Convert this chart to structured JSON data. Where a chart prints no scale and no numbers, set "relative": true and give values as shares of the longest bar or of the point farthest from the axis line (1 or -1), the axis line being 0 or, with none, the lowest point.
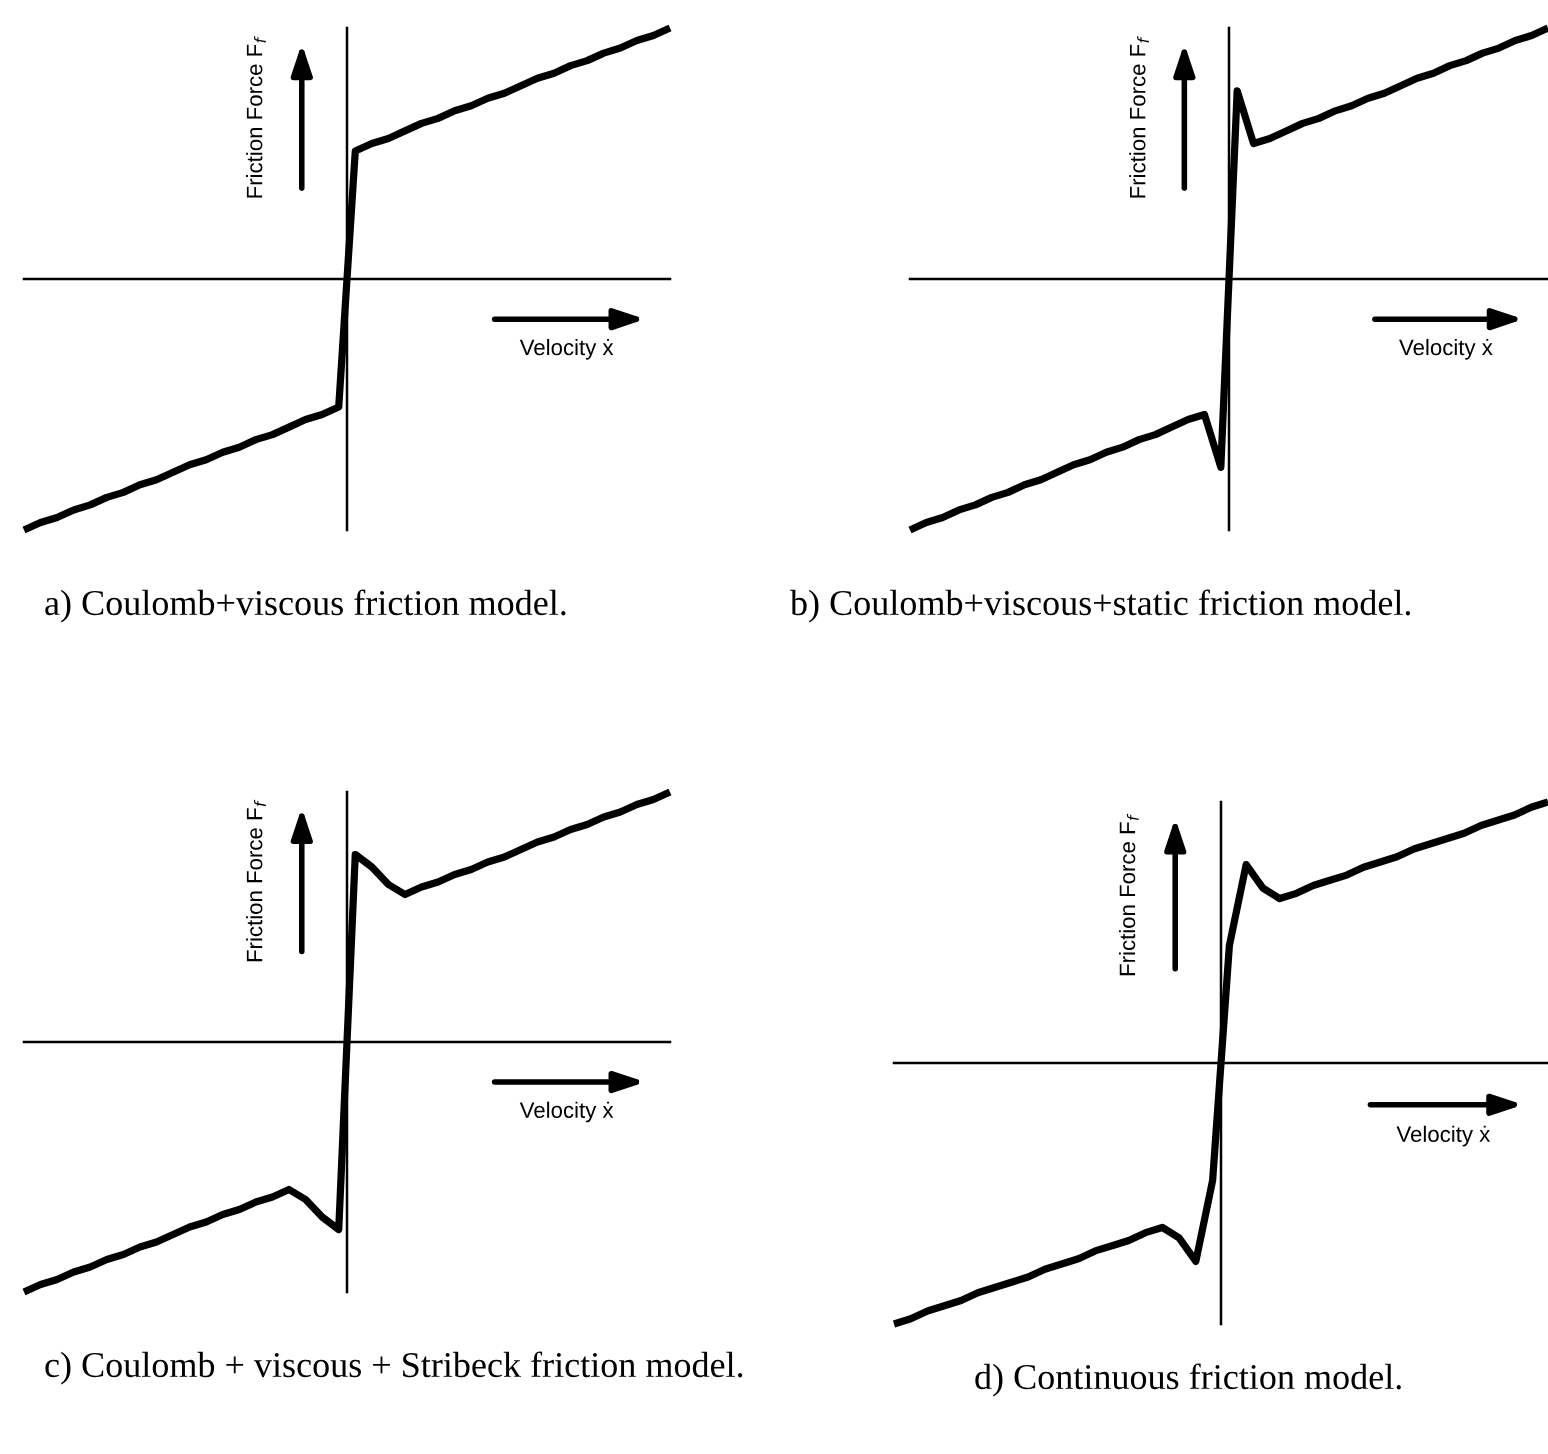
{
  "chart_data": [
    {
      "type": "line",
      "relative": true,
      "title": "a) Coulomb+viscous friction model.",
      "xlabel": "Velocity ẋ",
      "ylabel": "Friction Force F$_{f}$",
      "line_style": "solid",
      "categories": [
        null,
        null,
        null,
        null,
        null,
        null,
        null,
        null,
        null,
        null,
        null,
        null,
        null,
        null,
        null,
        null,
        null,
        null,
        null,
        null,
        null,
        null,
        null,
        null,
        null,
        null,
        null,
        null,
        null,
        null,
        null,
        null,
        null,
        null,
        null,
        null,
        null,
        null,
        null,
        null
      ],
      "series": [
        {
          "color": "#000000",
          "values": [
            -1,
            -0.97,
            -0.95,
            -0.92,
            -0.9,
            -0.87,
            -0.85,
            -0.82,
            -0.8,
            -0.77,
            -0.74,
            -0.72,
            -0.69,
            -0.67,
            -0.64,
            -0.62,
            -0.59,
            -0.56,
            -0.54,
            -0.51,
            0.51,
            0.54,
            0.56,
            0.59,
            0.62,
            0.64,
            0.67,
            0.69,
            0.72,
            0.74,
            0.77,
            0.8,
            0.82,
            0.85,
            0.87,
            0.9,
            0.92,
            0.95,
            0.97,
            1
          ]
        }
      ]
    },
    {
      "type": "line",
      "relative": true,
      "title": "b) Coulomb+viscous+static friction model.",
      "xlabel": "Velocity ẋ",
      "ylabel": "Friction Force F$_{f}$",
      "line_style": "solid",
      "categories": [
        null,
        null,
        null,
        null,
        null,
        null,
        null,
        null,
        null,
        null,
        null,
        null,
        null,
        null,
        null,
        null,
        null,
        null,
        null,
        null,
        null,
        null,
        null,
        null,
        null,
        null,
        null,
        null,
        null,
        null,
        null,
        null,
        null,
        null,
        null,
        null,
        null,
        null,
        null,
        null
      ],
      "series": [
        {
          "color": "#000000",
          "values": [
            -1,
            -0.97,
            -0.95,
            -0.92,
            -0.9,
            -0.87,
            -0.85,
            -0.82,
            -0.8,
            -0.77,
            -0.74,
            -0.72,
            -0.69,
            -0.67,
            -0.64,
            -0.62,
            -0.59,
            -0.56,
            -0.54,
            -0.75,
            0.75,
            0.54,
            0.56,
            0.59,
            0.62,
            0.64,
            0.67,
            0.69,
            0.72,
            0.74,
            0.77,
            0.8,
            0.82,
            0.85,
            0.87,
            0.9,
            0.92,
            0.95,
            0.97,
            1
          ]
        }
      ]
    },
    {
      "type": "line",
      "relative": true,
      "title": "c) Coulomb + viscous + Stribeck friction model.",
      "xlabel": "Velocity ẋ",
      "ylabel": "Friction Force F$_{f}$",
      "line_style": "solid",
      "categories": [
        null,
        null,
        null,
        null,
        null,
        null,
        null,
        null,
        null,
        null,
        null,
        null,
        null,
        null,
        null,
        null,
        null,
        null,
        null,
        null,
        null,
        null,
        null,
        null,
        null,
        null,
        null,
        null,
        null,
        null,
        null,
        null,
        null,
        null,
        null,
        null,
        null,
        null,
        null,
        null
      ],
      "series": [
        {
          "color": "#000000",
          "values": [
            -1,
            -0.97,
            -0.95,
            -0.92,
            -0.9,
            -0.87,
            -0.85,
            -0.82,
            -0.8,
            -0.77,
            -0.74,
            -0.72,
            -0.69,
            -0.67,
            -0.64,
            -0.62,
            -0.59,
            -0.63,
            -0.7,
            -0.75,
            0.75,
            0.7,
            0.63,
            0.59,
            0.62,
            0.64,
            0.67,
            0.69,
            0.72,
            0.74,
            0.77,
            0.8,
            0.82,
            0.85,
            0.87,
            0.9,
            0.92,
            0.95,
            0.97,
            1
          ]
        }
      ]
    },
    {
      "type": "line",
      "relative": true,
      "title": "d) Continuous friction model.",
      "xlabel": "Velocity ẋ",
      "ylabel": "Friction Force F$_{f}$",
      "line_style": "solid",
      "categories": [
        null,
        null,
        null,
        null,
        null,
        null,
        null,
        null,
        null,
        null,
        null,
        null,
        null,
        null,
        null,
        null,
        null,
        null,
        null,
        null,
        null,
        null,
        null,
        null,
        null,
        null,
        null,
        null,
        null,
        null,
        null,
        null,
        null,
        null,
        null,
        null,
        null,
        null,
        null,
        null
      ],
      "series": [
        {
          "color": "#000000",
          "values": [
            -1,
            -0.98,
            -0.95,
            -0.93,
            -0.91,
            -0.88,
            -0.86,
            -0.84,
            -0.82,
            -0.79,
            -0.77,
            -0.75,
            -0.72,
            -0.7,
            -0.68,
            -0.65,
            -0.63,
            -0.67,
            -0.76,
            -0.45,
            0.45,
            0.76,
            0.67,
            0.63,
            0.65,
            0.68,
            0.7,
            0.72,
            0.75,
            0.77,
            0.79,
            0.82,
            0.84,
            0.86,
            0.88,
            0.91,
            0.93,
            0.95,
            0.98,
            1
          ]
        }
      ]
    }
  ]
}
